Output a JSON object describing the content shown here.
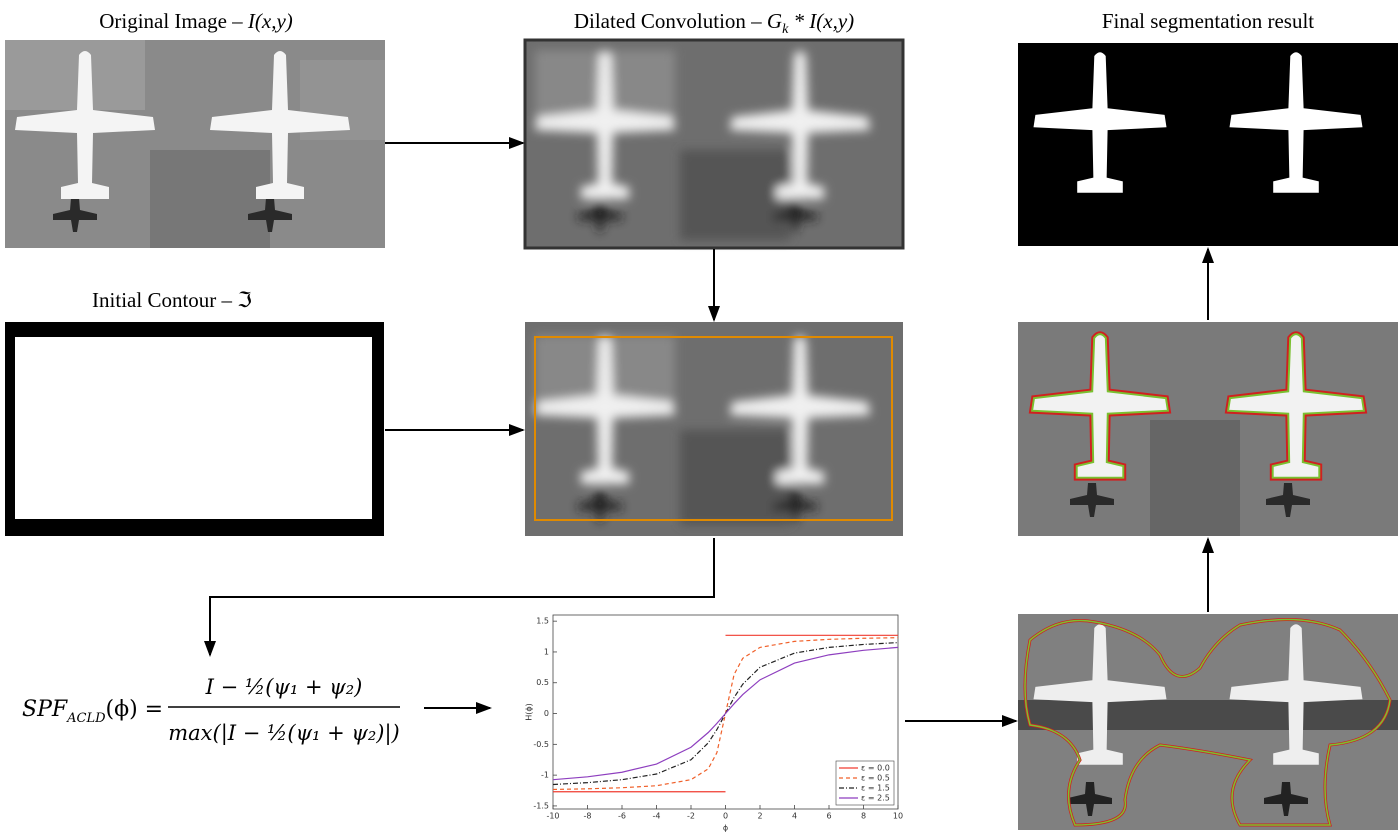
{
  "panels": {
    "original": {
      "title": "Original Image –",
      "title_math": "I(x,y)"
    },
    "dilated": {
      "title": "Dilated Convolution –",
      "title_math": "G",
      "title_sub": "k",
      "title_rest": "* I(x,y)"
    },
    "final": {
      "title": "Final segmentation result"
    },
    "initial_contour": {
      "title": "Initial Contour –",
      "title_math": "ℑ"
    }
  },
  "formula": {
    "lhs": "SPF",
    "lhs_sub": "ACLD",
    "lhs_arg": "(ϕ) =",
    "numerator": "I − ½(ψ₁ + ψ₂)",
    "denominator": "max(|I − ½(ψ₁ + ψ₂)|)"
  },
  "chart_data": {
    "type": "line",
    "x_label": "ϕ",
    "y_label": "H(ϕ)",
    "xlim": [
      -10,
      10
    ],
    "xticks": [
      -10,
      -8,
      -6,
      -4,
      -2,
      0,
      2,
      4,
      6,
      8,
      10
    ],
    "ylim": [
      -1.55,
      1.6
    ],
    "yticks": [
      -1.5,
      -1,
      -0.5,
      0,
      0.5,
      1,
      1.5
    ],
    "legend": "lower right",
    "series": [
      {
        "name": "ε = 0.0",
        "color": "#f03c30",
        "dash": "solid",
        "x": [
          -10,
          0,
          0,
          0,
          10
        ],
        "values": [
          -1.27,
          -1.27,
          null,
          1.27,
          1.27
        ]
      },
      {
        "name": "ε = 0.5",
        "color": "#f0602a",
        "dash": "dashed",
        "x": [
          -10,
          -8,
          -6,
          -4,
          -2,
          -1,
          -0.5,
          0,
          0.5,
          1,
          2,
          4,
          6,
          8,
          10
        ],
        "values": [
          -1.232,
          -1.222,
          -1.205,
          -1.172,
          -1.074,
          -0.897,
          -0.636,
          0,
          0.636,
          0.897,
          1.074,
          1.172,
          1.205,
          1.222,
          1.232
        ]
      },
      {
        "name": "ε = 1.5",
        "color": "#222222",
        "dash": "dashdot",
        "x": [
          -10,
          -8,
          -6,
          -4,
          -2,
          -1,
          -0.5,
          0,
          0.5,
          1,
          2,
          4,
          6,
          8,
          10
        ],
        "values": [
          -1.152,
          -1.122,
          -1.074,
          -0.982,
          -0.751,
          -0.476,
          -0.261,
          0,
          0.261,
          0.476,
          0.751,
          0.982,
          1.074,
          1.122,
          1.152
        ]
      },
      {
        "name": "ε = 2.5",
        "color": "#8e3fbf",
        "dash": "solid",
        "x": [
          -10,
          -8,
          -6,
          -4,
          -2,
          -1,
          -0.5,
          0,
          0.5,
          1,
          2,
          4,
          6,
          8,
          10
        ],
        "values": [
          -1.074,
          -1.027,
          -0.953,
          -0.82,
          -0.547,
          -0.308,
          -0.16,
          0,
          0.16,
          0.308,
          0.547,
          0.82,
          0.953,
          1.027,
          1.074
        ]
      }
    ]
  }
}
